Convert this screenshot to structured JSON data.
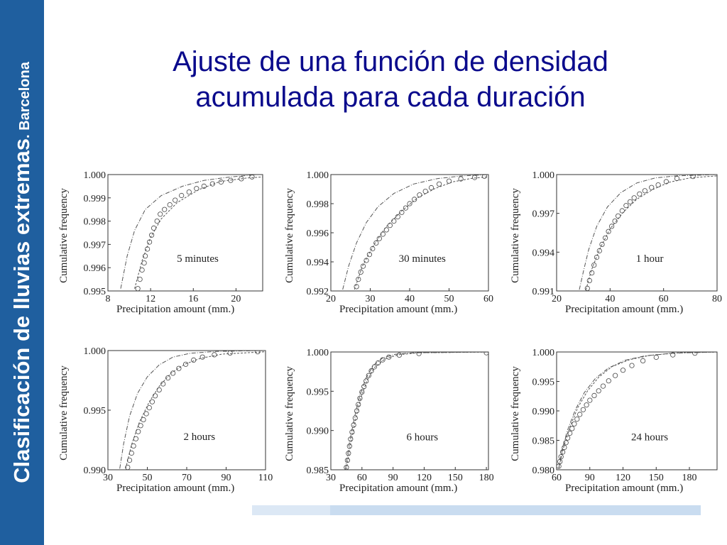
{
  "sidebar": {
    "main": "Clasificación de lluvias extremas",
    "sub": ". Barcelona"
  },
  "title": {
    "line1": "Ajuste de una función de densidad",
    "line2": "acumulada para cada duración"
  },
  "colors": {
    "banner": "#1f5f9f",
    "title": "#0a0a8c",
    "curve": "#555555",
    "points": "#444444"
  },
  "chart_data": [
    {
      "type": "scatter",
      "label": "5 minutes",
      "xlabel": "Precipitation amount (mm.)",
      "ylabel": "Cumulative frequency",
      "xlim": [
        8,
        22.5
      ],
      "ylim": [
        0.995,
        1.0
      ],
      "xticks": [
        "8",
        "12",
        "16",
        "20"
      ],
      "xtick_values": [
        8,
        12,
        16,
        20
      ],
      "yticks": [
        "0.995",
        "0.996",
        "0.997",
        "0.998",
        "0.999",
        "1.000"
      ],
      "ytick_values": [
        0.995,
        0.996,
        0.997,
        0.998,
        0.999,
        1.0
      ],
      "fit_a": [
        [
          9.2,
          0.9951
        ],
        [
          9.8,
          0.9965
        ],
        [
          10.5,
          0.9976
        ],
        [
          11.5,
          0.9985
        ],
        [
          13,
          0.9991
        ],
        [
          15,
          0.9995
        ],
        [
          17,
          0.99975
        ],
        [
          19.5,
          0.9999
        ],
        [
          22,
          1.0
        ]
      ],
      "fit_b": [
        [
          10.5,
          0.9951
        ],
        [
          11.2,
          0.9963
        ],
        [
          12,
          0.9973
        ],
        [
          13,
          0.9981
        ],
        [
          14.5,
          0.9988
        ],
        [
          16.5,
          0.99935
        ],
        [
          18.5,
          0.9997
        ],
        [
          21,
          0.99985
        ],
        [
          22.5,
          0.9999
        ]
      ],
      "points": [
        [
          10.8,
          0.9951
        ],
        [
          11.0,
          0.9955
        ],
        [
          11.2,
          0.9959
        ],
        [
          11.4,
          0.9962
        ],
        [
          11.5,
          0.9965
        ],
        [
          11.7,
          0.9968
        ],
        [
          11.9,
          0.9971
        ],
        [
          12.1,
          0.9974
        ],
        [
          12.3,
          0.9977
        ],
        [
          12.6,
          0.998
        ],
        [
          12.9,
          0.9983
        ],
        [
          13.3,
          0.9985
        ],
        [
          13.8,
          0.9987
        ],
        [
          14.3,
          0.9989
        ],
        [
          14.9,
          0.9991
        ],
        [
          15.6,
          0.99925
        ],
        [
          16.3,
          0.9994
        ],
        [
          17.0,
          0.9995
        ],
        [
          17.8,
          0.9996
        ],
        [
          18.6,
          0.99968
        ],
        [
          19.5,
          0.99975
        ],
        [
          20.5,
          0.99982
        ],
        [
          21.5,
          0.9999
        ]
      ]
    },
    {
      "type": "scatter",
      "label": "30 minutes",
      "xlabel": "Precipitation amount (mm.)",
      "ylabel": "Cumulative frequency",
      "xlim": [
        20,
        60
      ],
      "ylim": [
        0.992,
        1.0
      ],
      "xticks": [
        "20",
        "30",
        "40",
        "50",
        "60"
      ],
      "xtick_values": [
        20,
        30,
        40,
        50,
        60
      ],
      "yticks": [
        "0.992",
        "0.994",
        "0.996",
        "0.998",
        "1.000"
      ],
      "ytick_values": [
        0.992,
        0.994,
        0.996,
        0.998,
        1.0
      ],
      "fit_a": [
        [
          23,
          0.9921
        ],
        [
          24.5,
          0.9937
        ],
        [
          26.5,
          0.9953
        ],
        [
          29,
          0.9967
        ],
        [
          32,
          0.9978
        ],
        [
          36,
          0.9987
        ],
        [
          41,
          0.99935
        ],
        [
          47,
          0.99972
        ],
        [
          53,
          0.9999
        ],
        [
          60,
          1.0
        ]
      ],
      "fit_b": [
        [
          26,
          0.9921
        ],
        [
          28,
          0.9937
        ],
        [
          31,
          0.9952
        ],
        [
          34,
          0.9964
        ],
        [
          38,
          0.9975
        ],
        [
          42,
          0.9984
        ],
        [
          46.5,
          0.99905
        ],
        [
          51,
          0.9995
        ],
        [
          56,
          0.99975
        ],
        [
          60,
          0.99985
        ]
      ],
      "points": [
        [
          26.5,
          0.9923
        ],
        [
          27.0,
          0.9928
        ],
        [
          27.6,
          0.9933
        ],
        [
          28.2,
          0.9937
        ],
        [
          29.0,
          0.9941
        ],
        [
          29.8,
          0.9945
        ],
        [
          30.6,
          0.9949
        ],
        [
          31.5,
          0.9953
        ],
        [
          32.3,
          0.9956
        ],
        [
          33.2,
          0.9959
        ],
        [
          34.1,
          0.9962
        ],
        [
          35.0,
          0.9965
        ],
        [
          36.0,
          0.9968
        ],
        [
          37.0,
          0.9971
        ],
        [
          38.0,
          0.9974
        ],
        [
          39.0,
          0.9977
        ],
        [
          40.0,
          0.998
        ],
        [
          41.2,
          0.9983
        ],
        [
          42.5,
          0.9986
        ],
        [
          44.0,
          0.99885
        ],
        [
          45.5,
          0.9991
        ],
        [
          47.5,
          0.99935
        ],
        [
          50.0,
          0.99955
        ],
        [
          53.0,
          0.9997
        ],
        [
          56.5,
          0.9998
        ],
        [
          59.0,
          0.99988
        ]
      ]
    },
    {
      "type": "scatter",
      "label": "1 hour",
      "xlabel": "Precipitation amount (mm.)",
      "ylabel": "Cumulative frequency",
      "xlim": [
        20,
        80
      ],
      "ylim": [
        0.991,
        1.0
      ],
      "xticks": [
        "20",
        "40",
        "60",
        "80"
      ],
      "xtick_values": [
        20,
        40,
        60,
        80
      ],
      "yticks": [
        "0.991",
        "0.994",
        "0.997",
        "1.000"
      ],
      "ytick_values": [
        0.991,
        0.994,
        0.997,
        1.0
      ],
      "fit_a": [
        [
          28.5,
          0.9911
        ],
        [
          30,
          0.9925
        ],
        [
          32,
          0.9942
        ],
        [
          35,
          0.996
        ],
        [
          39,
          0.9975
        ],
        [
          44,
          0.9986
        ],
        [
          50,
          0.99935
        ],
        [
          57,
          0.99975
        ],
        [
          65,
          0.9999
        ],
        [
          80,
          1.0
        ]
      ],
      "fit_b": [
        [
          31,
          0.9911
        ],
        [
          33,
          0.9926
        ],
        [
          36,
          0.9942
        ],
        [
          40,
          0.9958
        ],
        [
          45,
          0.9971
        ],
        [
          50,
          0.9981
        ],
        [
          56,
          0.99885
        ],
        [
          62,
          0.9994
        ],
        [
          70,
          0.99975
        ],
        [
          80,
          0.9999
        ]
      ],
      "points": [
        [
          31.5,
          0.9912
        ],
        [
          32.3,
          0.9918
        ],
        [
          33.2,
          0.9924
        ],
        [
          34.0,
          0.993
        ],
        [
          35.0,
          0.9936
        ],
        [
          36.0,
          0.9941
        ],
        [
          37.0,
          0.9946
        ],
        [
          38.2,
          0.9951
        ],
        [
          39.4,
          0.9956
        ],
        [
          40.6,
          0.996
        ],
        [
          41.8,
          0.9964
        ],
        [
          43.0,
          0.9968
        ],
        [
          44.5,
          0.9972
        ],
        [
          46.0,
          0.9976
        ],
        [
          47.5,
          0.9979
        ],
        [
          49.0,
          0.9982
        ],
        [
          51.0,
          0.9985
        ],
        [
          53.0,
          0.99875
        ],
        [
          55.5,
          0.999
        ],
        [
          58.0,
          0.9992
        ],
        [
          61.0,
          0.99945
        ],
        [
          65.0,
          0.9997
        ],
        [
          71.0,
          0.99985
        ]
      ]
    },
    {
      "type": "scatter",
      "label": "2 hours",
      "xlabel": "Precipitation amount (mm.)",
      "ylabel": "Cumulative frequency",
      "xlim": [
        30,
        110
      ],
      "ylim": [
        0.99,
        1.0
      ],
      "xticks": [
        "30",
        "50",
        "70",
        "90",
        "110"
      ],
      "xtick_values": [
        30,
        50,
        70,
        90,
        110
      ],
      "yticks": [
        "0.990",
        "0.995",
        "1.000"
      ],
      "ytick_values": [
        0.99,
        0.995,
        1.0
      ],
      "fit_a": [
        [
          36,
          0.9901
        ],
        [
          38,
          0.9922
        ],
        [
          41,
          0.9945
        ],
        [
          45,
          0.9964
        ],
        [
          50,
          0.9978
        ],
        [
          56,
          0.9988
        ],
        [
          63,
          0.99945
        ],
        [
          72,
          0.99978
        ],
        [
          85,
          0.99993
        ],
        [
          110,
          1.0
        ]
      ],
      "fit_b": [
        [
          39,
          0.9901
        ],
        [
          42,
          0.9921
        ],
        [
          46,
          0.994
        ],
        [
          51,
          0.9957
        ],
        [
          56,
          0.997
        ],
        [
          62,
          0.9981
        ],
        [
          69,
          0.99885
        ],
        [
          77,
          0.99935
        ],
        [
          88,
          0.9997
        ],
        [
          110,
          0.9999
        ]
      ],
      "points": [
        [
          40.0,
          0.9902
        ],
        [
          41.0,
          0.9908
        ],
        [
          42.0,
          0.9914
        ],
        [
          43.0,
          0.992
        ],
        [
          44.2,
          0.9926
        ],
        [
          45.4,
          0.9932
        ],
        [
          46.6,
          0.9937
        ],
        [
          48.0,
          0.9942
        ],
        [
          49.5,
          0.9947
        ],
        [
          51.0,
          0.9952
        ],
        [
          52.5,
          0.9957
        ],
        [
          54.0,
          0.9962
        ],
        [
          56.0,
          0.9967
        ],
        [
          58.0,
          0.9972
        ],
        [
          60.5,
          0.9977
        ],
        [
          63.0,
          0.9981
        ],
        [
          66.0,
          0.9985
        ],
        [
          69.5,
          0.99885
        ],
        [
          73.5,
          0.9992
        ],
        [
          78.0,
          0.99945
        ],
        [
          84.0,
          0.99965
        ],
        [
          92.0,
          0.9998
        ],
        [
          106.0,
          0.9999
        ]
      ]
    },
    {
      "type": "scatter",
      "label": "6 hours",
      "xlabel": "Precipitation amount (mm.)",
      "ylabel": "Cumulative frequency",
      "xlim": [
        30,
        182
      ],
      "ylim": [
        0.985,
        1.0
      ],
      "xticks": [
        "30",
        "60",
        "90",
        "120",
        "150",
        "180"
      ],
      "xtick_values": [
        30,
        60,
        90,
        120,
        150,
        180
      ],
      "yticks": [
        "0.985",
        "0.990",
        "0.995",
        "1.000"
      ],
      "ytick_values": [
        0.985,
        0.99,
        0.995,
        1.0
      ],
      "fit_a": [
        [
          44,
          0.985
        ],
        [
          48,
          0.9885
        ],
        [
          53,
          0.9918
        ],
        [
          58,
          0.9945
        ],
        [
          64,
          0.9967
        ],
        [
          71,
          0.9983
        ],
        [
          80,
          0.99925
        ],
        [
          92,
          0.9997
        ],
        [
          110,
          0.9999
        ],
        [
          182,
          1.0
        ]
      ],
      "fit_b": [
        [
          45,
          0.985
        ],
        [
          49,
          0.9883
        ],
        [
          54,
          0.9915
        ],
        [
          59,
          0.9942
        ],
        [
          65,
          0.9964
        ],
        [
          72,
          0.998
        ],
        [
          82,
          0.9991
        ],
        [
          95,
          0.99965
        ],
        [
          115,
          0.9999
        ],
        [
          182,
          0.99998
        ]
      ],
      "points": [
        [
          45.0,
          0.9853
        ],
        [
          46.0,
          0.9862
        ],
        [
          47.0,
          0.9871
        ],
        [
          48.0,
          0.988
        ],
        [
          49.0,
          0.9889
        ],
        [
          50.5,
          0.9898
        ],
        [
          52.0,
          0.9907
        ],
        [
          53.5,
          0.9916
        ],
        [
          55.0,
          0.9925
        ],
        [
          56.5,
          0.9933
        ],
        [
          58.0,
          0.9941
        ],
        [
          60.0,
          0.9949
        ],
        [
          62.0,
          0.9956
        ],
        [
          64.0,
          0.9963
        ],
        [
          66.5,
          0.997
        ],
        [
          69.0,
          0.9976
        ],
        [
          72.0,
          0.9981
        ],
        [
          75.5,
          0.9986
        ],
        [
          80.0,
          0.999
        ],
        [
          86.0,
          0.99935
        ],
        [
          96.0,
          0.9996
        ],
        [
          115.0,
          0.9998
        ],
        [
          180.0,
          0.9999
        ]
      ]
    },
    {
      "type": "scatter",
      "label": "24 hours",
      "xlabel": "Precipitation amount (mm.)",
      "ylabel": "Cumulative frequency",
      "xlim": [
        60,
        205
      ],
      "ylim": [
        0.98,
        1.0
      ],
      "xticks": [
        "60",
        "90",
        "120",
        "150",
        "180"
      ],
      "xtick_values": [
        60,
        90,
        120,
        150,
        180
      ],
      "yticks": [
        "0.980",
        "0.985",
        "0.990",
        "0.995",
        "1.000"
      ],
      "ytick_values": [
        0.98,
        0.985,
        0.99,
        0.995,
        1.0
      ],
      "fit_a": [
        [
          62,
          0.9803
        ],
        [
          65,
          0.9835
        ],
        [
          70,
          0.9868
        ],
        [
          77,
          0.9902
        ],
        [
          85,
          0.9931
        ],
        [
          95,
          0.9955
        ],
        [
          107,
          0.9973
        ],
        [
          122,
          0.9986
        ],
        [
          140,
          0.99935
        ],
        [
          165,
          0.9998
        ],
        [
          205,
          1.0
        ]
      ],
      "fit_b": [
        [
          62,
          0.9802
        ],
        [
          66,
          0.9836
        ],
        [
          72,
          0.9872
        ],
        [
          79,
          0.9905
        ],
        [
          88,
          0.9934
        ],
        [
          98,
          0.9957
        ],
        [
          110,
          0.9975
        ],
        [
          126,
          0.9987
        ],
        [
          145,
          0.99945
        ],
        [
          170,
          0.99985
        ],
        [
          205,
          0.99998
        ]
      ],
      "points": [
        [
          62.0,
          0.9806
        ],
        [
          63.0,
          0.9814
        ],
        [
          64.0,
          0.9822
        ],
        [
          65.5,
          0.983
        ],
        [
          67.0,
          0.9838
        ],
        [
          68.5,
          0.9846
        ],
        [
          70.0,
          0.9854
        ],
        [
          72.0,
          0.9862
        ],
        [
          74.0,
          0.987
        ],
        [
          76.0,
          0.9878
        ],
        [
          78.5,
          0.9886
        ],
        [
          81.0,
          0.9894
        ],
        [
          84.0,
          0.9902
        ],
        [
          87.0,
          0.991
        ],
        [
          90.0,
          0.9918
        ],
        [
          94.0,
          0.9926
        ],
        [
          98.0,
          0.9934
        ],
        [
          102.0,
          0.9942
        ],
        [
          107.0,
          0.9951
        ],
        [
          113.0,
          0.996
        ],
        [
          120.0,
          0.9969
        ],
        [
          128.0,
          0.9977
        ],
        [
          138.0,
          0.9985
        ],
        [
          150.0,
          0.9991
        ],
        [
          165.0,
          0.9995
        ],
        [
          185.0,
          0.9998
        ]
      ]
    }
  ]
}
